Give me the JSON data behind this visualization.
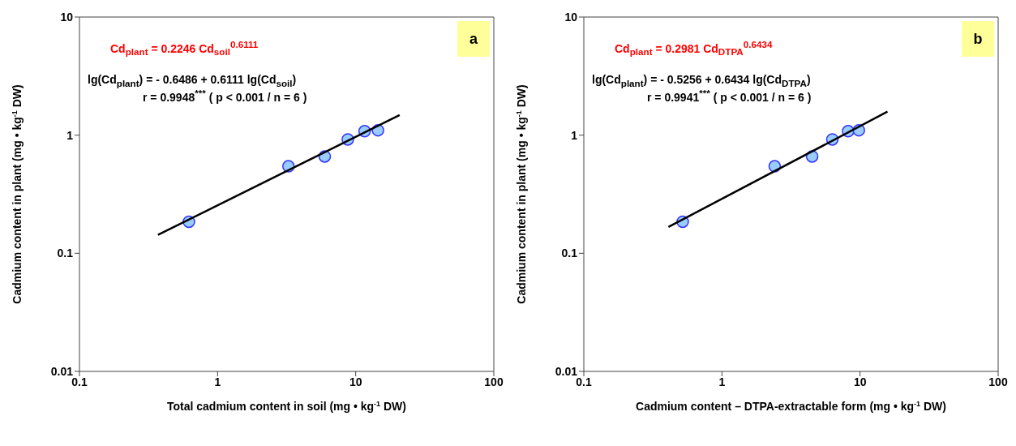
{
  "chart_data": [
    {
      "type": "scatter",
      "xlabel": "Total cadmium content  in soil (mg • kg$^{-1}$ DW)",
      "ylabel": "Cadmium content in plant (mg • kg$^{-1}$ DW)",
      "log": "xy",
      "xlim": [
        0.1,
        100
      ],
      "ylim": [
        0.01,
        10
      ],
      "xticks": [
        0.1,
        1,
        10,
        100
      ],
      "yticks": [
        0.01,
        0.1,
        1,
        10
      ],
      "grid": false,
      "legend": false,
      "marker": "circle",
      "annotations": [
        "Cd$_{plant}$ = 0.2246 Cd$_{soil}$$^{0.6111}$",
        "lg(Cd$_{plant}$) = - 0.6486 + 0.6111 lg(Cd$_{soil}$)",
        "r = 0.9948$^{***}$  ( p < 0.001 / n = 6 )",
        "a"
      ],
      "series": [
        {
          "type": "scatter",
          "color": "#99ccff",
          "x": [
            0.62,
            3.26,
            5.97,
            8.77,
            11.6,
            14.5
          ],
          "values": [
            0.185,
            0.545,
            0.66,
            0.92,
            1.08,
            1.1
          ]
        },
        {
          "type": "line",
          "color": "#000000",
          "x": [
            0.37,
            20.8
          ],
          "values": [
            0.143,
            1.48
          ],
          "marker": "none",
          "line_style": "solid"
        }
      ]
    },
    {
      "type": "scatter",
      "xlabel": "Cadmium content – DTPA-extractable form (mg • kg$^{-1}$ DW)",
      "ylabel": "Cadmium content in plant (mg • kg$^{-1}$ DW)",
      "log": "xy",
      "xlim": [
        0.1,
        100
      ],
      "ylim": [
        0.01,
        10
      ],
      "xticks": [
        0.1,
        1,
        10,
        100
      ],
      "yticks": [
        0.01,
        0.1,
        1,
        10
      ],
      "grid": false,
      "legend": false,
      "marker": "circle",
      "annotations": [
        "Cd$_{plant}$ = 0.2981 Cd$_{DTPA}$$^{0.6434}$",
        "lg(Cd$_{plant}$) = - 0.5256 + 0.6434 lg(Cd$_{DTPA}$)",
        "r = 0.9941$^{***}$  ( p < 0.001 / n = 6 )",
        "b"
      ],
      "series": [
        {
          "type": "scatter",
          "color": "#99ccff",
          "x": [
            0.52,
            2.41,
            4.5,
            6.3,
            8.2,
            9.8
          ],
          "values": [
            0.185,
            0.545,
            0.66,
            0.92,
            1.08,
            1.1
          ]
        },
        {
          "type": "line",
          "color": "#000000",
          "x": [
            0.41,
            15.8
          ],
          "values": [
            0.167,
            1.58
          ],
          "marker": "none",
          "line_style": "solid"
        }
      ]
    }
  ]
}
